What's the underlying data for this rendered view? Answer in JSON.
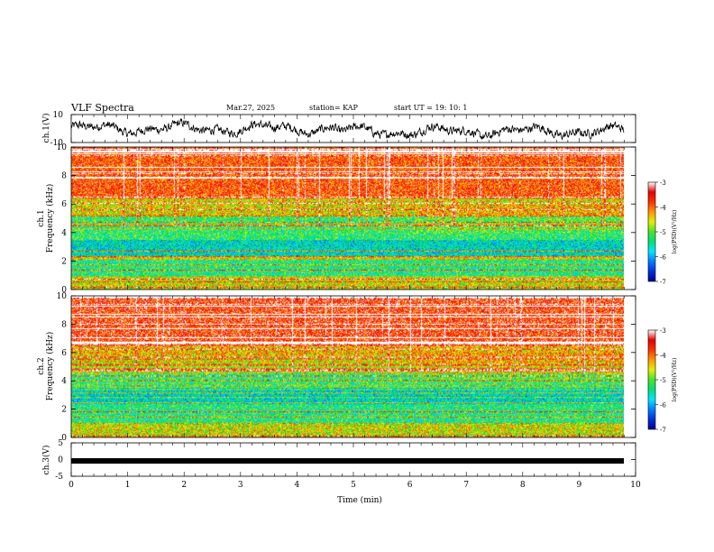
{
  "header": {
    "title": "VLF Spectra",
    "date": "Mar.27, 2025",
    "station": "station= KAP",
    "start": "start  UT  =   19: 10: 1"
  },
  "chart_data": [
    {
      "type": "line",
      "panel": "ch1-waveform",
      "ylabel": "ch.1(V)",
      "ylim": [
        -10,
        10
      ],
      "yticks": [
        10,
        -10
      ],
      "xlim": [
        0,
        10
      ]
    },
    {
      "type": "heatmap",
      "panel": "ch1-spectrogram",
      "ylabel_top": "ch.1",
      "ylabel": "Frequency  (kHz)",
      "ylim": [
        0,
        10
      ],
      "yticks": [
        0,
        2,
        4,
        6,
        8,
        10
      ],
      "xlim": [
        0,
        10
      ],
      "colorbar": {
        "label": "log(PSD)(V²/Hz)",
        "range": [
          -7,
          -3
        ],
        "ticks": [
          "-3",
          "-4",
          "-5",
          "-6",
          "-7"
        ]
      }
    },
    {
      "type": "heatmap",
      "panel": "ch2-spectrogram",
      "ylabel_top": "ch.2",
      "ylabel": "Frequency  (kHz)",
      "ylim": [
        0,
        10
      ],
      "yticks": [
        0,
        2,
        4,
        6,
        8,
        10
      ],
      "xlim": [
        0,
        10
      ],
      "colorbar": {
        "label": "log(PSD)(V²/Hz)",
        "range": [
          -7,
          -3
        ],
        "ticks": [
          "-3",
          "-4",
          "-5",
          "-6",
          "-7"
        ]
      }
    },
    {
      "type": "line",
      "panel": "ch3-waveform",
      "ylabel": "ch.3(V)",
      "ylim": [
        -5,
        5
      ],
      "yticks": [
        5,
        0,
        -5
      ],
      "xlabel": "Time  (min)",
      "xlim": [
        0,
        10
      ],
      "xticks": [
        0,
        1,
        2,
        3,
        4,
        5,
        6,
        7,
        8,
        9,
        10
      ]
    }
  ]
}
